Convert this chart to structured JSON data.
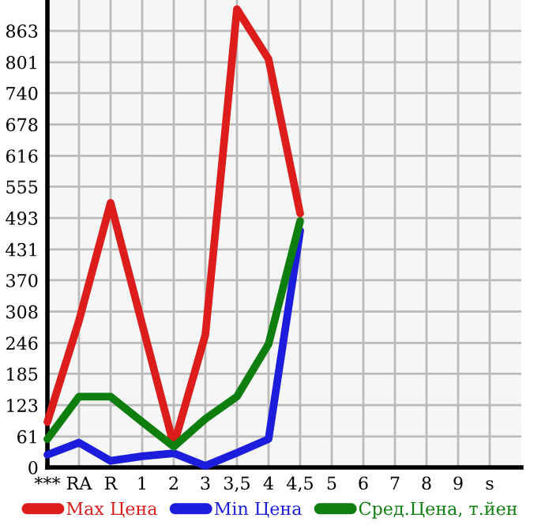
{
  "chart_data": {
    "type": "line",
    "categories": [
      "***",
      "RA",
      "R",
      "1",
      "2",
      "3",
      "3,5",
      "4",
      "4,5",
      "5",
      "6",
      "7",
      "8",
      "9",
      "s"
    ],
    "series": [
      {
        "name": "Max Цена",
        "color": "#dd1c1c",
        "values": [
          90,
          290,
          523,
          283,
          44,
          262,
          906,
          807,
          502,
          null,
          null,
          null,
          null,
          null,
          null
        ]
      },
      {
        "name": "Min Цена",
        "color": "#1c1cdd",
        "values": [
          25,
          49,
          13,
          22,
          28,
          3,
          29,
          56,
          468,
          null,
          null,
          null,
          null,
          null,
          null
        ]
      },
      {
        "name": "Сред.Цена, т.йен",
        "color": "#0e7e0e",
        "values": [
          56,
          140,
          140,
          90,
          41,
          96,
          140,
          244,
          487,
          null,
          null,
          null,
          null,
          null,
          null
        ]
      }
    ],
    "ylim": [
      0,
      924
    ],
    "yticks": [
      0,
      61,
      123,
      185,
      246,
      308,
      370,
      431,
      493,
      555,
      616,
      678,
      740,
      801,
      863
    ],
    "grid": true,
    "legend": "bottom",
    "marker": "none",
    "line_style": "solid"
  }
}
